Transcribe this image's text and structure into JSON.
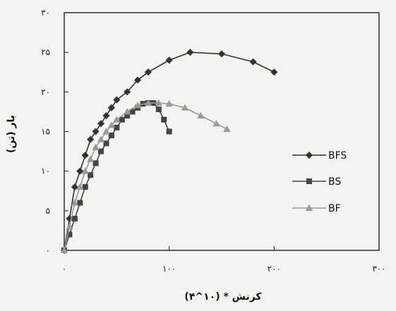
{
  "chart_data": {
    "type": "line",
    "xlabel": "کرنش * (۱۰^۴)",
    "ylabel": "بار (تن)",
    "xlim": [
      0,
      300
    ],
    "ylim": [
      0,
      30
    ],
    "x_ticks": [
      {
        "value": 0,
        "label": "۰"
      },
      {
        "value": 100,
        "label": "۱۰۰"
      },
      {
        "value": 200,
        "label": "۲۰۰"
      },
      {
        "value": 300,
        "label": "۳۰۰"
      }
    ],
    "y_ticks": [
      {
        "value": 0,
        "label": "۰"
      },
      {
        "value": 5,
        "label": "۵"
      },
      {
        "value": 10,
        "label": "۱۰"
      },
      {
        "value": 15,
        "label": "۱۵"
      },
      {
        "value": 20,
        "label": "۲۰"
      },
      {
        "value": 25,
        "label": "۲۵"
      },
      {
        "value": 30,
        "label": "۳۰"
      }
    ],
    "grid": false,
    "legend_position": "right",
    "series": [
      {
        "name": "BFS",
        "color": "#333333",
        "marker": "diamond",
        "points": [
          [
            0,
            0
          ],
          [
            5,
            4
          ],
          [
            10,
            8
          ],
          [
            15,
            10
          ],
          [
            20,
            12
          ],
          [
            25,
            14
          ],
          [
            30,
            15
          ],
          [
            35,
            16
          ],
          [
            40,
            17
          ],
          [
            45,
            18
          ],
          [
            50,
            19
          ],
          [
            60,
            20
          ],
          [
            70,
            21.5
          ],
          [
            80,
            22.5
          ],
          [
            100,
            24
          ],
          [
            120,
            25
          ],
          [
            150,
            24.8
          ],
          [
            180,
            23.8
          ],
          [
            200,
            22.5
          ]
        ]
      },
      {
        "name": "BS",
        "color": "#444444",
        "marker": "square",
        "points": [
          [
            0,
            0
          ],
          [
            5,
            2
          ],
          [
            10,
            4
          ],
          [
            15,
            6
          ],
          [
            20,
            8
          ],
          [
            25,
            9.5
          ],
          [
            30,
            11
          ],
          [
            35,
            12.5
          ],
          [
            40,
            13.5
          ],
          [
            45,
            14.5
          ],
          [
            50,
            15.5
          ],
          [
            55,
            16.5
          ],
          [
            60,
            17
          ],
          [
            65,
            17.5
          ],
          [
            70,
            18
          ],
          [
            75,
            18.5
          ],
          [
            80,
            18.6
          ],
          [
            85,
            18.6
          ],
          [
            90,
            17.8
          ],
          [
            95,
            16.5
          ],
          [
            100,
            15
          ]
        ]
      },
      {
        "name": "BF",
        "color": "#999999",
        "marker": "triangle",
        "points": [
          [
            0,
            0
          ],
          [
            5,
            3
          ],
          [
            10,
            6
          ],
          [
            15,
            8
          ],
          [
            20,
            10
          ],
          [
            25,
            11.5
          ],
          [
            30,
            13
          ],
          [
            35,
            14
          ],
          [
            40,
            15
          ],
          [
            45,
            15.8
          ],
          [
            50,
            16.5
          ],
          [
            60,
            17.5
          ],
          [
            70,
            18.3
          ],
          [
            80,
            18.6
          ],
          [
            90,
            18.6
          ],
          [
            100,
            18.5
          ],
          [
            115,
            18
          ],
          [
            130,
            17
          ],
          [
            145,
            16
          ],
          [
            155,
            15.3
          ]
        ]
      }
    ]
  }
}
